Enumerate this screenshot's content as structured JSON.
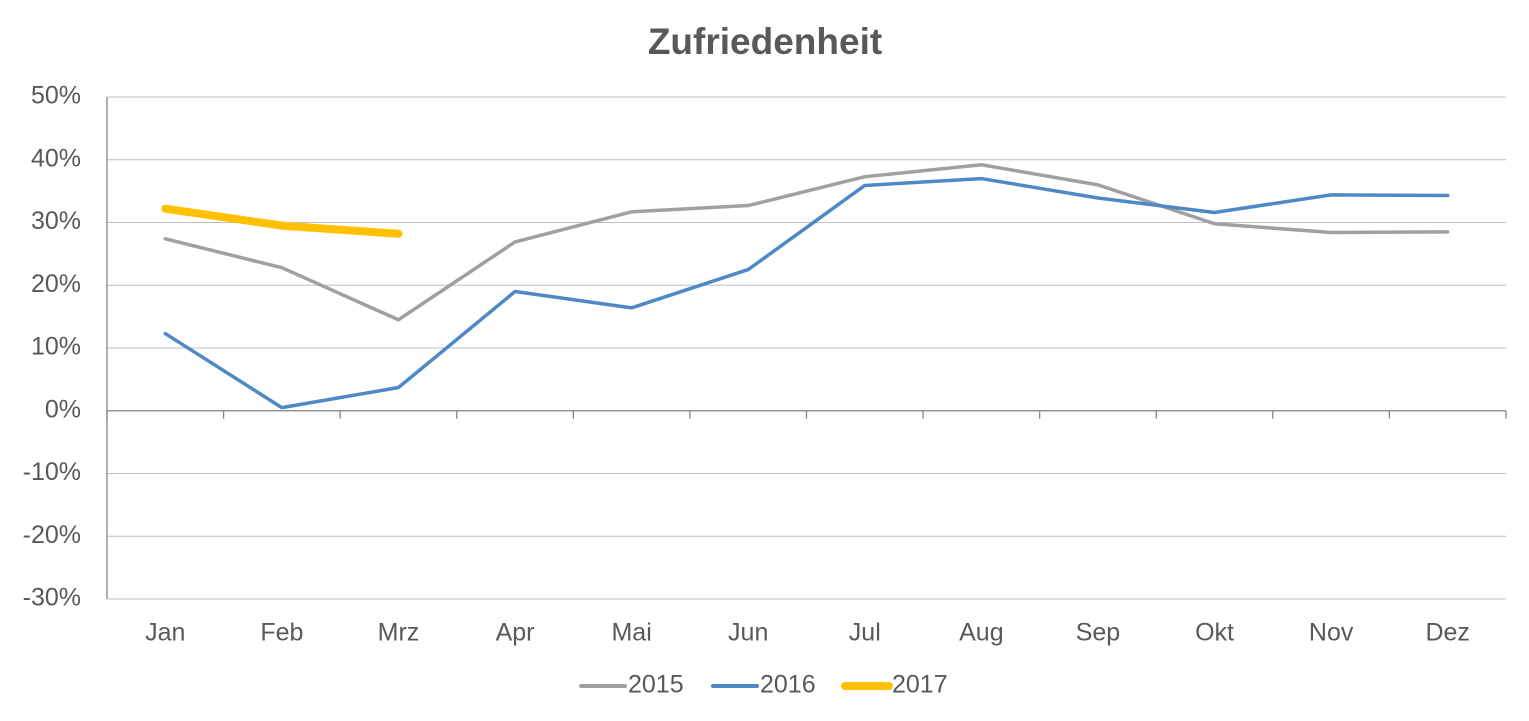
{
  "chart_data": {
    "type": "line",
    "title": "Zufriedenheit",
    "categories": [
      "Jan",
      "Feb",
      "Mrz",
      "Apr",
      "Mai",
      "Jun",
      "Jul",
      "Aug",
      "Sep",
      "Okt",
      "Nov",
      "Dez"
    ],
    "series": [
      {
        "name": "2015",
        "color": "#a0a0a0",
        "values": [
          27.4,
          22.8,
          14.5,
          26.9,
          31.7,
          32.7,
          37.3,
          39.2,
          36.0,
          29.8,
          28.4,
          28.5
        ]
      },
      {
        "name": "2016",
        "color": "#4f88c6",
        "values": [
          12.3,
          0.5,
          3.7,
          19.0,
          16.4,
          22.5,
          35.9,
          37.0,
          33.9,
          31.6,
          34.4,
          34.3
        ]
      },
      {
        "name": "2017",
        "color": "#ffc000",
        "values": [
          32.2,
          29.5,
          28.2,
          null,
          null,
          null,
          null,
          null,
          null,
          null,
          null,
          null
        ]
      }
    ],
    "ylim": [
      -30,
      50
    ],
    "yticks": [
      {
        "value": -30,
        "label": "-30%"
      },
      {
        "value": -20,
        "label": "-20%"
      },
      {
        "value": -10,
        "label": "-10%"
      },
      {
        "value": 0,
        "label": "0%"
      },
      {
        "value": 10,
        "label": "10%"
      },
      {
        "value": 20,
        "label": "20%"
      },
      {
        "value": 30,
        "label": "30%"
      },
      {
        "value": 40,
        "label": "40%"
      },
      {
        "value": 50,
        "label": "50%"
      }
    ],
    "grid": true,
    "legend": "bottom"
  }
}
